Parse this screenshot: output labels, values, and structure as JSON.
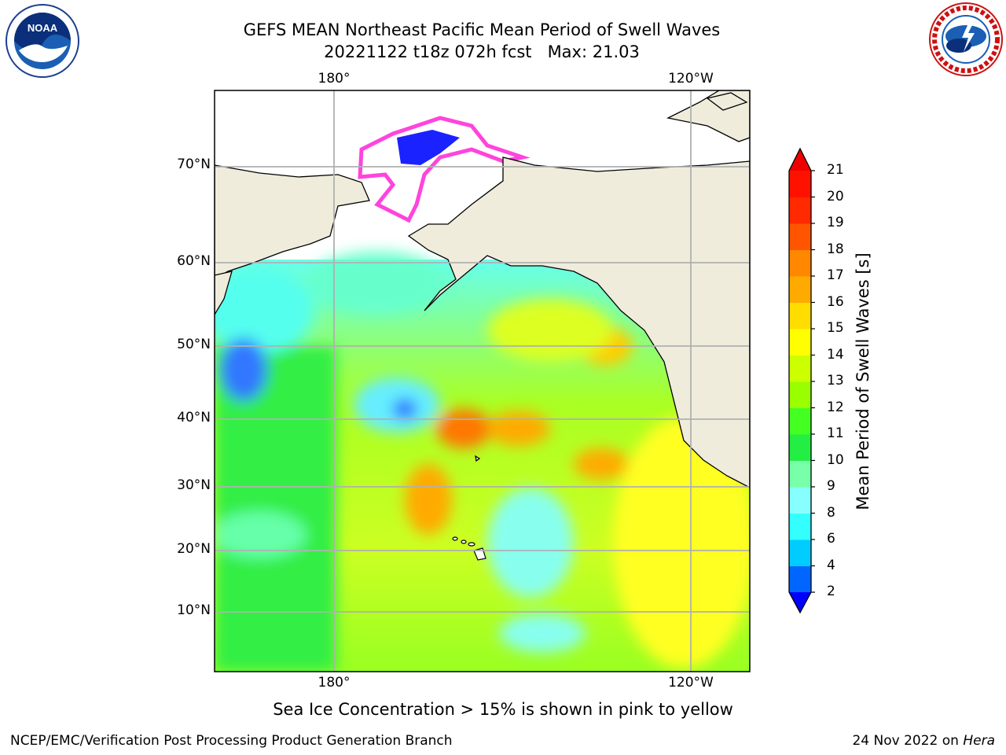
{
  "header": {
    "title_line1": "GEFS MEAN Northeast Pacific Mean Period of Swell Waves",
    "title_line2": "20221122 t18z 072h fcst   Max: 21.03"
  },
  "logos": {
    "left": "NOAA",
    "left_ring_text": "NATIONAL OCEANIC AND ATMOSPHERIC ADMINISTRATION · U.S. DEPARTMENT OF COMMERCE",
    "right_ring_text": "NATIONAL WEATHER SERVICE"
  },
  "map": {
    "lon_labels_top": [
      "180°",
      "120°W"
    ],
    "lon_labels_bottom": [
      "180°",
      "120°W"
    ],
    "lat_labels": [
      "70°N",
      "60°N",
      "50°N",
      "40°N",
      "30°N",
      "20°N",
      "10°N"
    ],
    "land_color": "#efecdc",
    "grid_color": "#b0b0b0"
  },
  "colorbar": {
    "title": "Mean Period of Swell Waves [s]",
    "labels": [
      "21",
      "20",
      "19",
      "18",
      "17",
      "16",
      "15",
      "14",
      "13",
      "12",
      "11",
      "10",
      "9",
      "8",
      "6",
      "4",
      "2"
    ],
    "colors": [
      "#0000ff",
      "#0066ff",
      "#00ccff",
      "#33ffff",
      "#88ffff",
      "#77ffaa",
      "#22ee44",
      "#44ff22",
      "#99ff00",
      "#ccff00",
      "#ffff00",
      "#ffdd00",
      "#ffaa00",
      "#ff8800",
      "#ff5500",
      "#ff2a00",
      "#ff1100",
      "#ee0000"
    ]
  },
  "subtitle": "Sea Ice Concentration > 15% is shown in pink to yellow",
  "footer": {
    "left": "NCEP/EMC/Verification Post Processing Product Generation Branch",
    "right_date": "24 Nov 2022 on ",
    "right_machine": "Hera"
  }
}
